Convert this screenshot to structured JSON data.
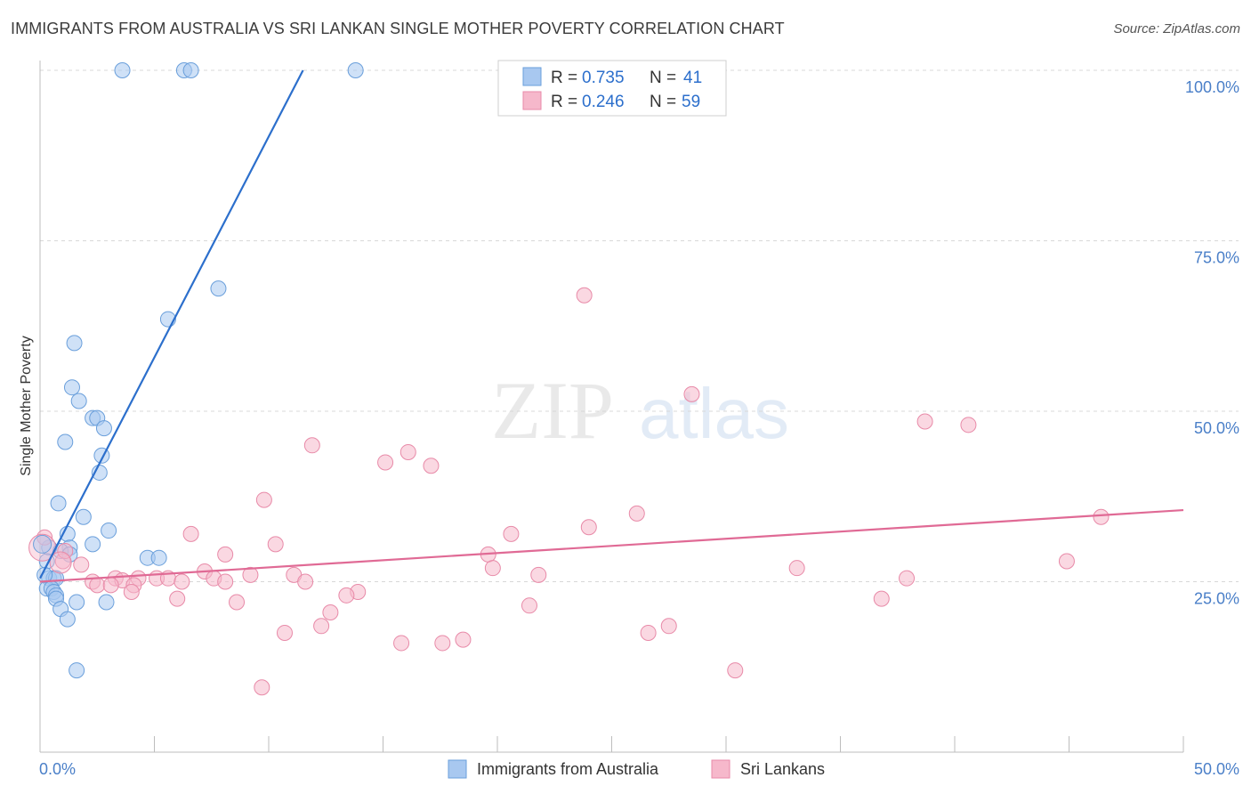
{
  "title": "IMMIGRANTS FROM AUSTRALIA VS SRI LANKAN SINGLE MOTHER POVERTY CORRELATION CHART",
  "source": "Source: ZipAtlas.com",
  "watermark": {
    "zip": "ZIP",
    "atlas": "atlas"
  },
  "legend_top": [
    {
      "r_label": "R = ",
      "r_value": "0.735",
      "n_label": "N = ",
      "n_value": "41",
      "color": "#a8c8f0"
    },
    {
      "r_label": "R = ",
      "r_value": "0.246",
      "n_label": "N = ",
      "n_value": "59",
      "color": "#f6b8cb"
    }
  ],
  "legend_bottom": [
    {
      "label": "Immigrants from Australia",
      "color": "#a8c8f0"
    },
    {
      "label": "Sri Lankans",
      "color": "#f6b8cb"
    }
  ],
  "colors": {
    "blue_fill": "#a8c8f0",
    "blue_stroke": "#6a9fdb",
    "blue_line": "#2c6fcc",
    "pink_fill": "#f6b8cb",
    "pink_stroke": "#e88aa8",
    "pink_line": "#e06a95",
    "tick_blue": "#4a7fc8",
    "grid": "#d8d8d8"
  },
  "chart_data": {
    "type": "scatter",
    "title": "IMMIGRANTS FROM AUSTRALIA VS SRI LANKAN SINGLE MOTHER POVERTY CORRELATION CHART",
    "xlabel": "",
    "ylabel": "Single Mother Poverty",
    "xlim": [
      0,
      50
    ],
    "ylim": [
      0,
      100
    ],
    "x_tick_labels": [
      {
        "value": 0,
        "label": "0.0%"
      },
      {
        "value": 50,
        "label": "50.0%"
      }
    ],
    "y_tick_labels": [
      {
        "value": 25,
        "label": "25.0%"
      },
      {
        "value": 50,
        "label": "50.0%"
      },
      {
        "value": 75,
        "label": "75.0%"
      },
      {
        "value": 100,
        "label": "100.0%"
      }
    ],
    "y_gridlines": [
      25,
      50,
      75,
      100
    ],
    "x_minor_ticks": [
      5,
      10,
      15,
      20,
      25,
      30,
      35,
      40,
      45,
      50
    ],
    "series": [
      {
        "name": "Immigrants from Australia",
        "R": 0.735,
        "N": 41,
        "trend": {
          "x0": 0,
          "y0": 25.5,
          "x1": 11.5,
          "y1": 100
        },
        "points": [
          [
            3.6,
            100
          ],
          [
            6.3,
            100
          ],
          [
            6.6,
            100
          ],
          [
            13.8,
            100
          ],
          [
            7.8,
            68
          ],
          [
            5.6,
            63.5
          ],
          [
            1.5,
            60
          ],
          [
            1.4,
            53.5
          ],
          [
            1.7,
            51.5
          ],
          [
            2.3,
            49
          ],
          [
            2.5,
            49
          ],
          [
            2.8,
            47.5
          ],
          [
            1.1,
            45.5
          ],
          [
            2.7,
            43.5
          ],
          [
            2.6,
            41
          ],
          [
            0.8,
            36.5
          ],
          [
            1.9,
            34.5
          ],
          [
            3.0,
            32.5
          ],
          [
            1.2,
            32
          ],
          [
            2.3,
            30.5
          ],
          [
            0.4,
            30
          ],
          [
            1.3,
            30
          ],
          [
            0.9,
            29.5
          ],
          [
            1.3,
            29
          ],
          [
            4.7,
            28.5
          ],
          [
            5.2,
            28.5
          ],
          [
            0.3,
            28
          ],
          [
            0.4,
            25.5
          ],
          [
            0.6,
            25.5
          ],
          [
            0.7,
            25.5
          ],
          [
            0.3,
            24
          ],
          [
            0.5,
            24
          ],
          [
            0.6,
            23.5
          ],
          [
            0.7,
            23
          ],
          [
            0.7,
            22.5
          ],
          [
            1.6,
            22
          ],
          [
            2.9,
            22
          ],
          [
            0.9,
            21
          ],
          [
            1.2,
            19.5
          ],
          [
            1.6,
            12
          ],
          [
            0.2,
            26
          ]
        ]
      },
      {
        "name": "Sri Lankans",
        "R": 0.246,
        "N": 59,
        "trend": {
          "x0": 0,
          "y0": 25,
          "x1": 50,
          "y1": 35.5
        },
        "points": [
          [
            23.8,
            67
          ],
          [
            28.5,
            52.5
          ],
          [
            38.7,
            48.5
          ],
          [
            40.6,
            48
          ],
          [
            11.9,
            45
          ],
          [
            16.1,
            44
          ],
          [
            15.1,
            42.5
          ],
          [
            17.1,
            42
          ],
          [
            9.8,
            37
          ],
          [
            26.1,
            35
          ],
          [
            46.4,
            34.5
          ],
          [
            24.0,
            33
          ],
          [
            6.6,
            32
          ],
          [
            20.6,
            32
          ],
          [
            10.3,
            30.5
          ],
          [
            19.6,
            29
          ],
          [
            8.1,
            29
          ],
          [
            1.8,
            27.5
          ],
          [
            44.9,
            28
          ],
          [
            33.1,
            27
          ],
          [
            19.8,
            27
          ],
          [
            7.2,
            26.5
          ],
          [
            11.1,
            26
          ],
          [
            9.2,
            26
          ],
          [
            21.8,
            26
          ],
          [
            37.9,
            25.5
          ],
          [
            2.3,
            25
          ],
          [
            3.3,
            25.5
          ],
          [
            3.6,
            25.2
          ],
          [
            4.3,
            25.5
          ],
          [
            5.1,
            25.5
          ],
          [
            5.6,
            25.5
          ],
          [
            6.2,
            25
          ],
          [
            7.6,
            25.5
          ],
          [
            8.1,
            25
          ],
          [
            11.6,
            25
          ],
          [
            2.5,
            24.5
          ],
          [
            3.1,
            24.5
          ],
          [
            4.1,
            24.5
          ],
          [
            4.0,
            23.5
          ],
          [
            13.9,
            23.5
          ],
          [
            13.4,
            23
          ],
          [
            6.0,
            22.5
          ],
          [
            8.6,
            22
          ],
          [
            36.8,
            22.5
          ],
          [
            21.4,
            21.5
          ],
          [
            12.7,
            20.5
          ],
          [
            12.3,
            18.5
          ],
          [
            27.5,
            18.5
          ],
          [
            26.6,
            17.5
          ],
          [
            10.7,
            17.5
          ],
          [
            18.5,
            16.5
          ],
          [
            17.6,
            16
          ],
          [
            15.8,
            16
          ],
          [
            30.4,
            12
          ],
          [
            9.7,
            9.5
          ],
          [
            0.2,
            31.5
          ],
          [
            1.0,
            28
          ],
          [
            1.1,
            29.5
          ]
        ]
      }
    ]
  }
}
